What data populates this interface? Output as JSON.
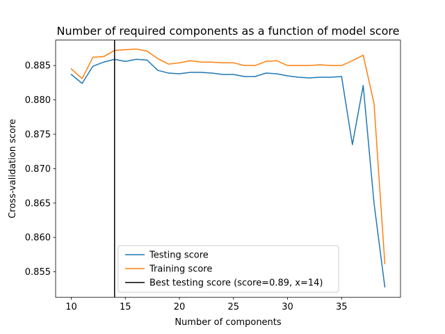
{
  "chart_data": {
    "type": "line",
    "title": "Number of required components as a function of model score",
    "xlabel": "Number of components",
    "ylabel": "Cross-validation score",
    "xlim": [
      8.55,
      40.45
    ],
    "ylim": [
      0.8513,
      0.8887
    ],
    "xticks": [
      10,
      15,
      20,
      25,
      30,
      35
    ],
    "yticks": [
      0.855,
      0.86,
      0.865,
      0.87,
      0.875,
      0.88,
      0.885
    ],
    "ytick_labels": [
      "0.855",
      "0.860",
      "0.865",
      "0.870",
      "0.875",
      "0.880",
      "0.885"
    ],
    "grid": false,
    "legend_position": "lower-center",
    "x": [
      10,
      11,
      12,
      13,
      14,
      15,
      16,
      17,
      18,
      19,
      20,
      21,
      22,
      23,
      24,
      25,
      26,
      27,
      28,
      29,
      30,
      31,
      32,
      33,
      34,
      35,
      36,
      37,
      38,
      39
    ],
    "series": [
      {
        "name": "Testing score",
        "color": "#1f77b4",
        "values": [
          0.8837,
          0.8824,
          0.8849,
          0.8855,
          0.8859,
          0.8856,
          0.8859,
          0.8858,
          0.8843,
          0.8839,
          0.8838,
          0.884,
          0.884,
          0.8839,
          0.8837,
          0.8837,
          0.8834,
          0.8834,
          0.8839,
          0.8838,
          0.8835,
          0.8833,
          0.8832,
          0.8833,
          0.8833,
          0.8834,
          0.8735,
          0.8821,
          0.865,
          0.8528
        ]
      },
      {
        "name": "Training score",
        "color": "#ff7f0e",
        "values": [
          0.8845,
          0.8831,
          0.8862,
          0.8863,
          0.8872,
          0.8873,
          0.8874,
          0.8871,
          0.886,
          0.8852,
          0.8854,
          0.8857,
          0.8855,
          0.8855,
          0.8854,
          0.8854,
          0.885,
          0.885,
          0.8856,
          0.8857,
          0.885,
          0.885,
          0.885,
          0.8851,
          0.885,
          0.885,
          0.8857,
          0.8865,
          0.8795,
          0.8562
        ]
      }
    ],
    "vline": {
      "name": "Best testing score (score=0.89, x=14)",
      "x": 14,
      "color": "#000000"
    }
  }
}
